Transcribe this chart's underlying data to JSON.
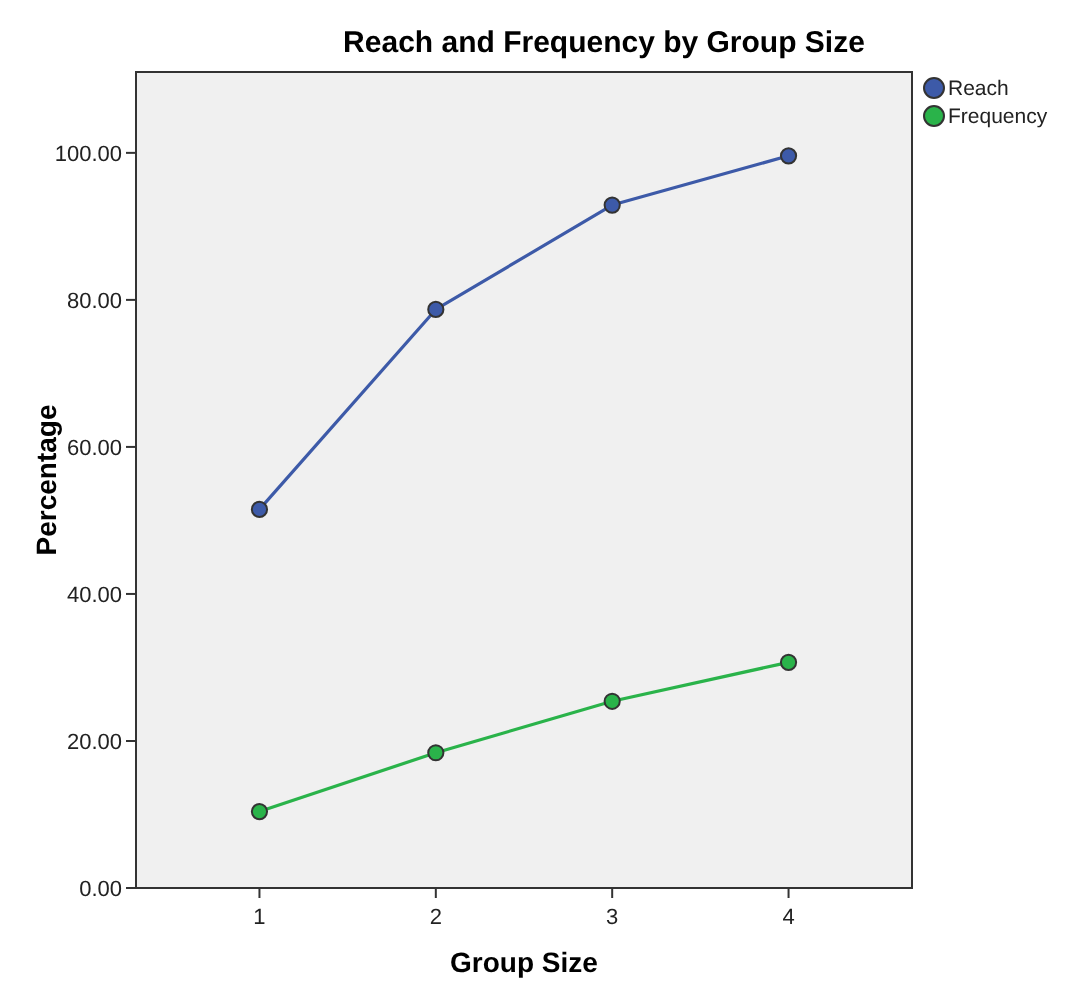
{
  "chart_data": {
    "type": "line",
    "title": "Reach and Frequency by Group Size",
    "xlabel": "Group Size",
    "ylabel": "Percentage",
    "x": [
      1,
      2,
      3,
      4
    ],
    "xlim": [
      0.3,
      4.7
    ],
    "xticks": [
      1,
      2,
      3,
      4
    ],
    "ylim": [
      0,
      111
    ],
    "yticks": [
      {
        "value": 0,
        "label": "0.00"
      },
      {
        "value": 20,
        "label": "20.00"
      },
      {
        "value": 40,
        "label": "40.00"
      },
      {
        "value": 60,
        "label": "60.00"
      },
      {
        "value": 80,
        "label": "80.00"
      },
      {
        "value": 100,
        "label": "100.00"
      }
    ],
    "series": [
      {
        "name": "Reach",
        "color": "#3d5aa8",
        "values": [
          51.5,
          78.7,
          92.9,
          99.6
        ]
      },
      {
        "name": "Frequency",
        "color": "#2ab34a",
        "values": [
          10.4,
          18.4,
          25.4,
          30.7
        ]
      }
    ],
    "marker": "circle",
    "legend": "top right",
    "grid": false
  }
}
